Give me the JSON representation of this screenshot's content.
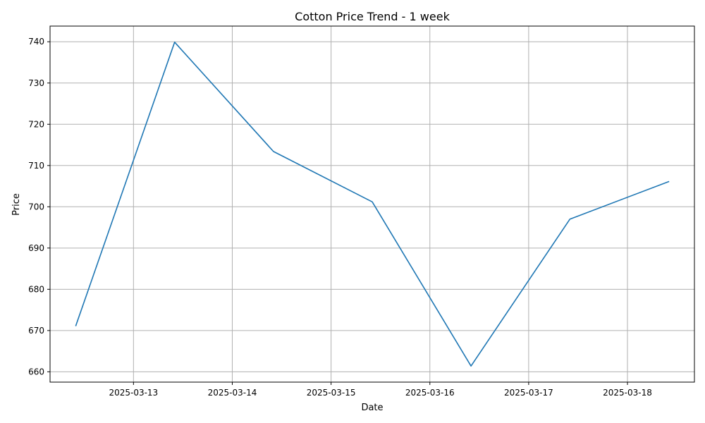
{
  "chart_data": {
    "type": "line",
    "title": "Cotton Price Trend - 1 week",
    "xlabel": "Date",
    "ylabel": "Price",
    "x": [
      "2025-03-12 10:00",
      "2025-03-13 10:00",
      "2025-03-14 10:00",
      "2025-03-15 10:00",
      "2025-03-16 10:00",
      "2025-03-17 10:00",
      "2025-03-18 10:00"
    ],
    "series": [
      {
        "values": [
          671.2,
          739.9,
          713.4,
          701.2,
          661.4,
          697.0,
          706.1
        ]
      }
    ],
    "x_ticks": [
      "2025-03-13",
      "2025-03-14",
      "2025-03-15",
      "2025-03-16",
      "2025-03-17",
      "2025-03-18"
    ],
    "y_ticks": [
      660,
      670,
      680,
      690,
      700,
      710,
      720,
      730,
      740
    ],
    "xlim": [
      "2025-03-12 03:44",
      "2025-03-18 16:16"
    ],
    "ylim": [
      657.5,
      743.8
    ],
    "grid": true,
    "line_color": "#1f77b4"
  }
}
